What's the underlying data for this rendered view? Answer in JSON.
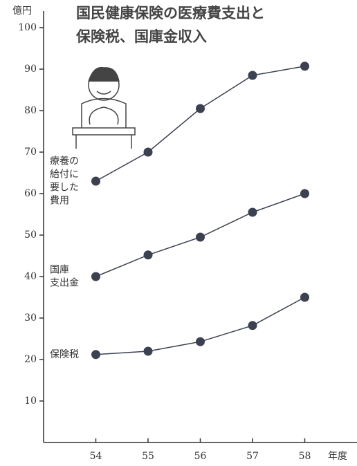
{
  "chart_data": {
    "type": "line",
    "title": [
      "国民健康保険の医療費支出と",
      "保険税、国庫金収入"
    ],
    "y_label": "億円",
    "x_label": "年度",
    "x": [
      54,
      55,
      56,
      57,
      58
    ],
    "xlim": [
      53,
      59
    ],
    "xticks": [
      54,
      55,
      56,
      57,
      58
    ],
    "ylim": [
      0,
      104
    ],
    "yticks": [
      10,
      20,
      30,
      40,
      50,
      60,
      70,
      80,
      90,
      100
    ],
    "series": [
      {
        "name": [
          "療養の",
          "給付に",
          "要した",
          "費用"
        ],
        "color": "#3b4150",
        "values": [
          63,
          70,
          80.5,
          88.5,
          90.7
        ]
      },
      {
        "name": [
          "国庫",
          "支出金"
        ],
        "color": "#3b4150",
        "values": [
          40,
          45.2,
          49.5,
          55.5,
          60
        ]
      },
      {
        "name": [
          "保険税"
        ],
        "color": "#3b4150",
        "values": [
          21.2,
          22,
          24.3,
          28.2,
          35
        ]
      }
    ]
  }
}
